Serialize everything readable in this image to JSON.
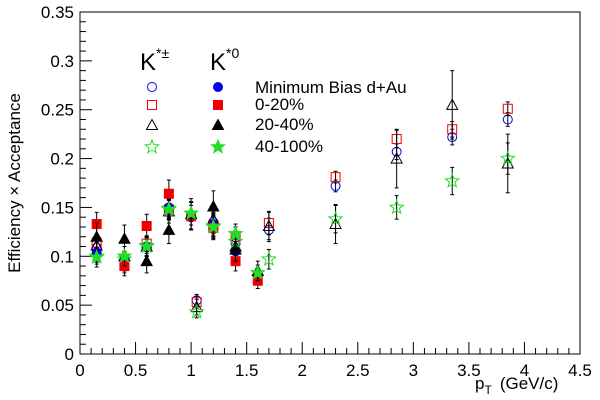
{
  "chart_data": {
    "type": "scatter",
    "xlabel": "p",
    "xlabel_sub": "T",
    "xlabel_unit": "(GeV/c)",
    "ylabel": "Efficiency × Acceptance",
    "xlim": [
      0,
      4.5
    ],
    "ylim": [
      0,
      0.35
    ],
    "xticks": [
      0,
      0.5,
      1,
      1.5,
      2,
      2.5,
      3,
      3.5,
      4,
      4.5
    ],
    "xtick_labels": [
      "0",
      "0.5",
      "1",
      "1.5",
      "2",
      "2.5",
      "3",
      "3.5",
      "4",
      "4.5"
    ],
    "yticks": [
      0,
      0.05,
      0.1,
      0.15,
      0.2,
      0.25,
      0.3,
      0.35
    ],
    "ytick_labels": [
      "0",
      "0.05",
      "0.1",
      "0.15",
      "0.2",
      "0.25",
      "0.3",
      "0.35"
    ],
    "grid": false,
    "legend": {
      "placement": "top-left",
      "col1_head": "K",
      "col1_sup": "*±",
      "col2_head": "K",
      "col2_sup": "*0",
      "rows": [
        "Minimum Bias d+Au",
        "0-20%",
        "20-40%",
        "40-100%"
      ]
    },
    "series": [
      {
        "name": "K*± Minimum Bias d+Au",
        "marker": "circle",
        "filled": false,
        "color": "#0000ee",
        "points": [
          [
            0.15,
            0.109
          ],
          [
            0.4,
            0.096
          ],
          [
            0.6,
            0.109
          ],
          [
            0.8,
            0.147
          ],
          [
            1.05,
            0.055
          ],
          [
            1.2,
            0.135
          ],
          [
            1.4,
            0.113
          ],
          [
            1.7,
            0.127
          ],
          [
            2.3,
            0.172
          ],
          [
            2.85,
            0.207
          ],
          [
            3.35,
            0.222
          ],
          [
            3.85,
            0.24
          ]
        ],
        "err": [
          0.008,
          0.008,
          0.008,
          0.01,
          0.006,
          0.012,
          0.01,
          0.012,
          0.006,
          0.008,
          0.008,
          0.007
        ]
      },
      {
        "name": "K*± 0-20%",
        "marker": "square",
        "filled": false,
        "color": "#ee0000",
        "points": [
          [
            0.15,
            0.114
          ],
          [
            0.4,
            0.091
          ],
          [
            0.6,
            0.113
          ],
          [
            0.8,
            0.148
          ],
          [
            1.05,
            0.053
          ],
          [
            1.2,
            0.132
          ],
          [
            1.4,
            0.12
          ],
          [
            1.7,
            0.134
          ],
          [
            2.3,
            0.181
          ],
          [
            2.85,
            0.22
          ],
          [
            3.35,
            0.23
          ],
          [
            3.85,
            0.251
          ]
        ],
        "err": [
          0.008,
          0.008,
          0.008,
          0.01,
          0.006,
          0.012,
          0.01,
          0.012,
          0.006,
          0.009,
          0.008,
          0.007
        ]
      },
      {
        "name": "K*± 20-40%",
        "marker": "triangle",
        "filled": false,
        "color": "#000000",
        "points": [
          [
            0.15,
            0.111
          ],
          [
            0.4,
            0.1
          ],
          [
            0.6,
            0.11
          ],
          [
            0.8,
            0.146
          ],
          [
            1.05,
            0.048
          ],
          [
            1.2,
            0.138
          ],
          [
            1.4,
            0.11
          ],
          [
            1.7,
            0.131
          ],
          [
            2.3,
            0.133
          ],
          [
            2.85,
            0.2
          ],
          [
            3.35,
            0.255
          ],
          [
            3.85,
            0.195
          ]
        ],
        "err": [
          0.01,
          0.01,
          0.01,
          0.012,
          0.008,
          0.014,
          0.012,
          0.014,
          0.02,
          0.03,
          0.035,
          0.03
        ]
      },
      {
        "name": "K*± 40-100%",
        "marker": "star",
        "filled": false,
        "color": "#22dd22",
        "points": [
          [
            0.15,
            0.1
          ],
          [
            0.4,
            0.097
          ],
          [
            0.6,
            0.111
          ],
          [
            0.8,
            0.149
          ],
          [
            1.05,
            0.043
          ],
          [
            1.2,
            0.131
          ],
          [
            1.4,
            0.115
          ],
          [
            1.7,
            0.097
          ],
          [
            2.3,
            0.138
          ],
          [
            2.85,
            0.15
          ],
          [
            3.35,
            0.177
          ],
          [
            3.85,
            0.2
          ]
        ],
        "err": [
          0.008,
          0.008,
          0.008,
          0.01,
          0.006,
          0.012,
          0.01,
          0.01,
          0.014,
          0.012,
          0.014,
          0.016
        ]
      },
      {
        "name": "K*0 Minimum Bias d+Au",
        "marker": "circle",
        "filled": true,
        "color": "#0000ee",
        "points": [
          [
            0.15,
            0.104
          ],
          [
            0.4,
            0.095
          ],
          [
            0.6,
            0.11
          ],
          [
            0.8,
            0.15
          ],
          [
            1.0,
            0.14
          ],
          [
            1.2,
            0.133
          ],
          [
            1.4,
            0.105
          ],
          [
            1.6,
            0.08
          ]
        ],
        "err": [
          0.01,
          0.01,
          0.01,
          0.01,
          0.012,
          0.012,
          0.01,
          0.008
        ]
      },
      {
        "name": "K*0 0-20%",
        "marker": "square",
        "filled": true,
        "color": "#ee0000",
        "points": [
          [
            0.15,
            0.133
          ],
          [
            0.4,
            0.09
          ],
          [
            0.6,
            0.131
          ],
          [
            0.8,
            0.164
          ],
          [
            1.0,
            0.141
          ],
          [
            1.2,
            0.129
          ],
          [
            1.4,
            0.095
          ],
          [
            1.6,
            0.075
          ]
        ],
        "err": [
          0.012,
          0.01,
          0.012,
          0.014,
          0.014,
          0.012,
          0.01,
          0.008
        ]
      },
      {
        "name": "K*0 20-40%",
        "marker": "triangle",
        "filled": true,
        "color": "#000000",
        "points": [
          [
            0.15,
            0.12
          ],
          [
            0.4,
            0.118
          ],
          [
            0.6,
            0.095
          ],
          [
            0.8,
            0.127
          ],
          [
            1.0,
            0.143
          ],
          [
            1.2,
            0.151
          ],
          [
            1.4,
            0.107
          ],
          [
            1.6,
            0.085
          ]
        ],
        "err": [
          0.014,
          0.014,
          0.012,
          0.014,
          0.016,
          0.016,
          0.012,
          0.01
        ]
      },
      {
        "name": "K*0 40-100%",
        "marker": "star",
        "filled": true,
        "color": "#22dd22",
        "points": [
          [
            0.15,
            0.099
          ],
          [
            0.4,
            0.1
          ],
          [
            0.6,
            0.11
          ],
          [
            0.8,
            0.148
          ],
          [
            1.0,
            0.144
          ],
          [
            1.2,
            0.13
          ],
          [
            1.4,
            0.123
          ],
          [
            1.6,
            0.083
          ]
        ],
        "err": [
          0.01,
          0.01,
          0.01,
          0.01,
          0.012,
          0.012,
          0.01,
          0.008
        ]
      }
    ]
  }
}
